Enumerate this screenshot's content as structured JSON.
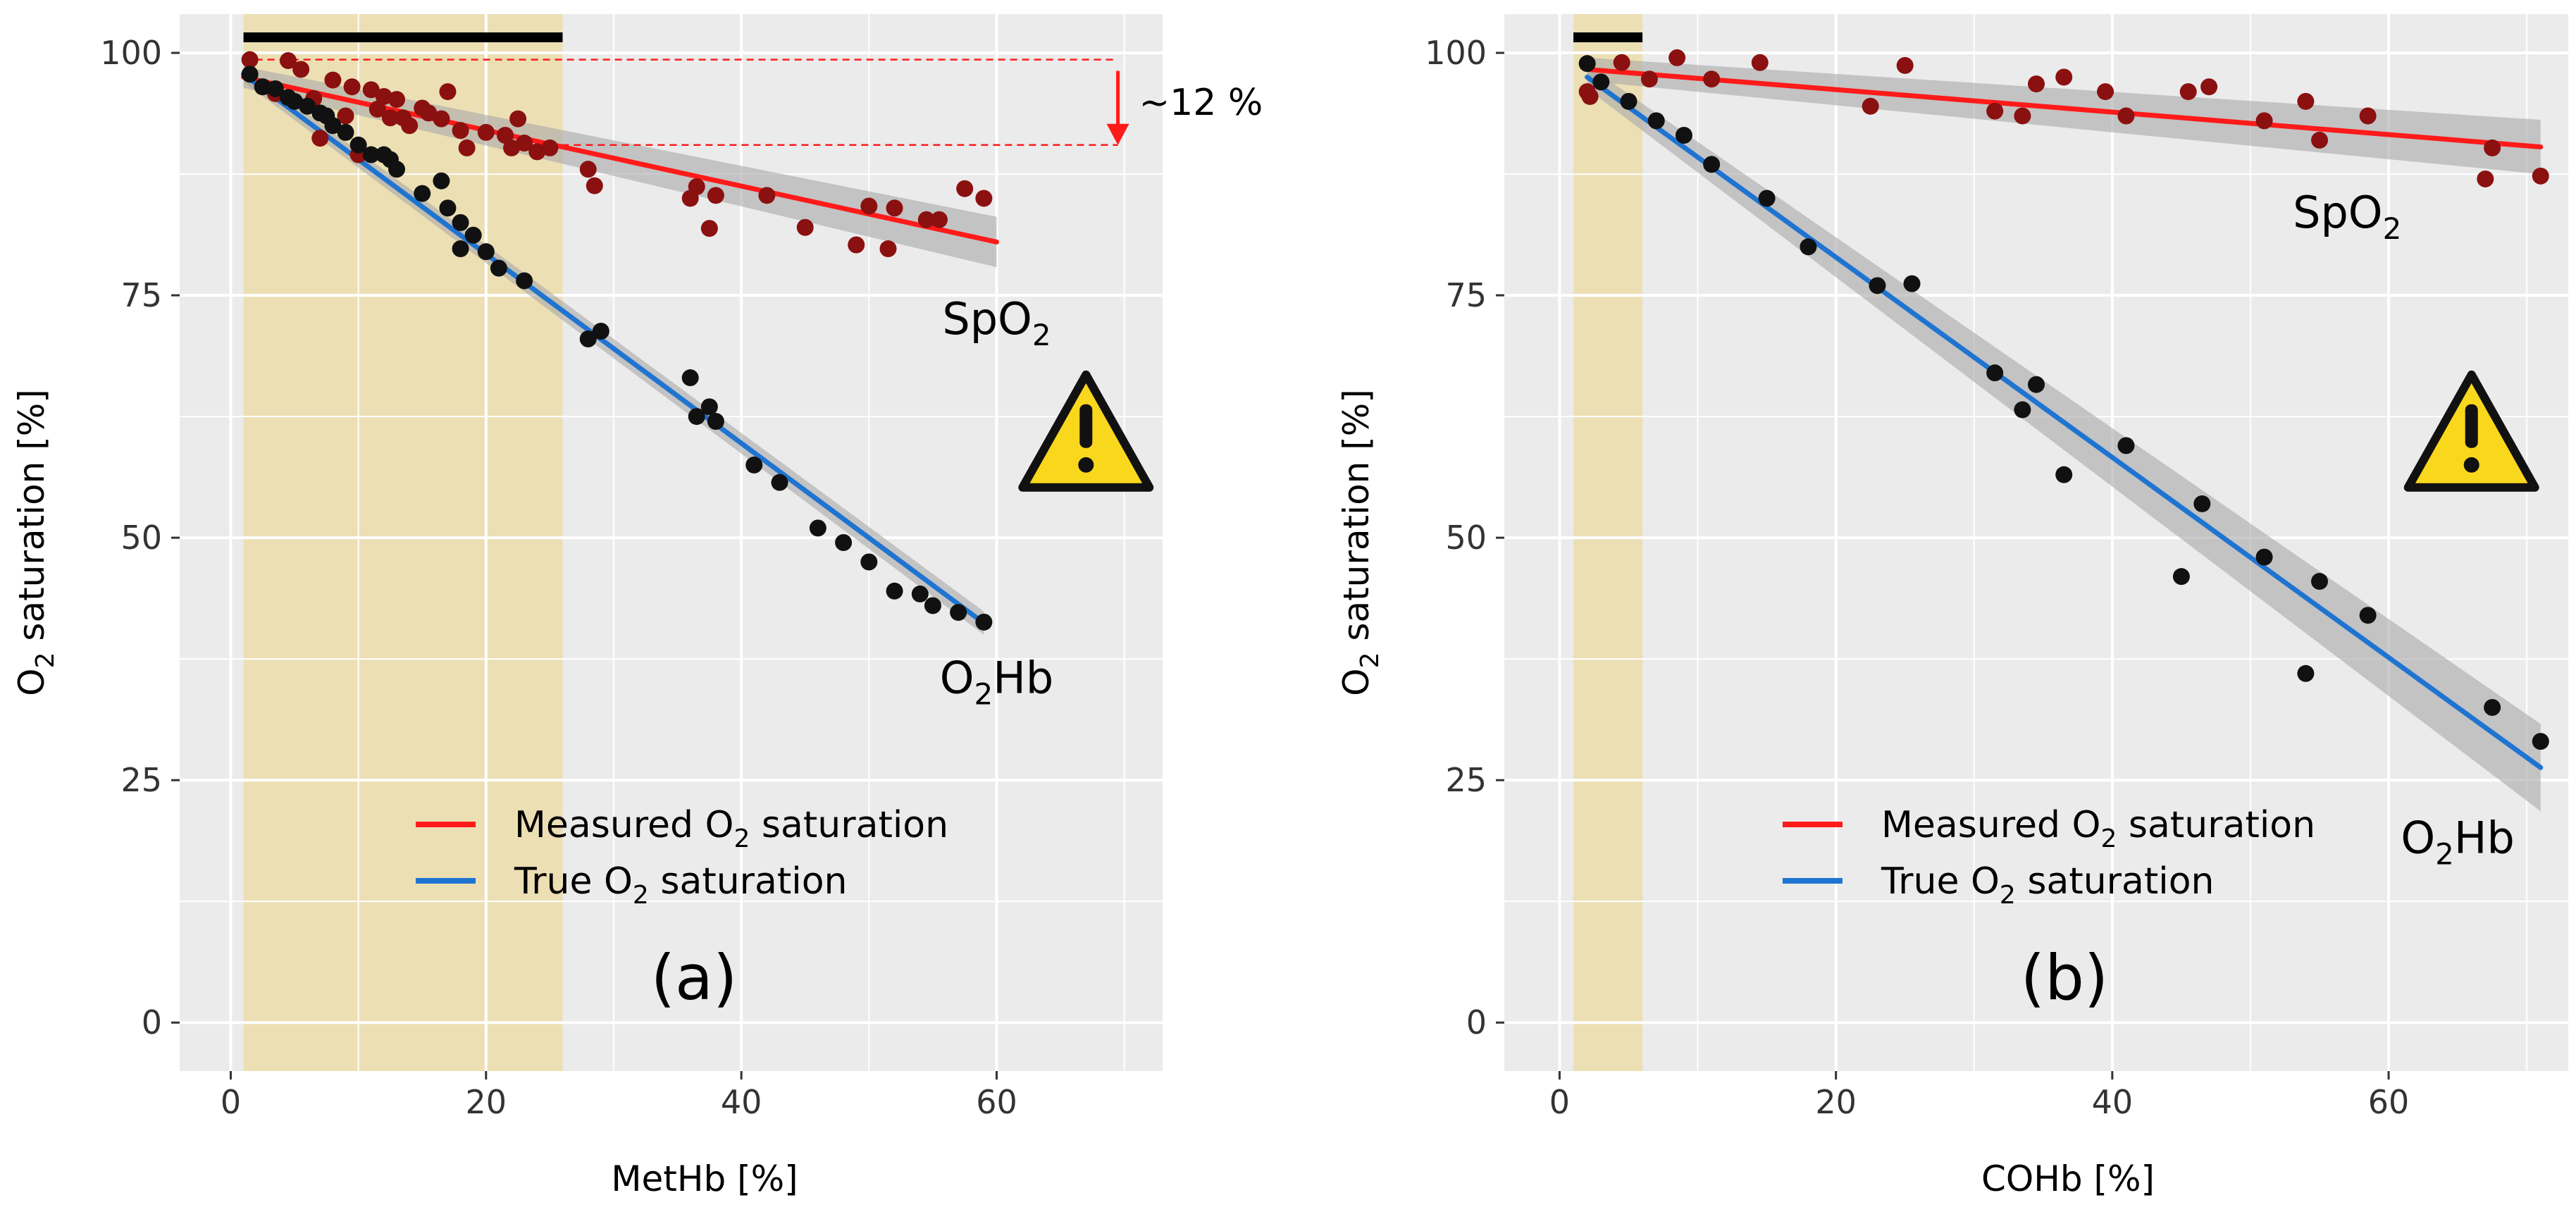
{
  "chart_data": [
    {
      "type": "scatter",
      "panel_label": "(a)",
      "xlabel": "MetHb [%]",
      "ylabel_prefix": "O",
      "ylabel_sub": "2",
      "ylabel_suffix": " saturation [%]",
      "xlim": [
        -4,
        73
      ],
      "ylim": [
        -5,
        104
      ],
      "xticks": [
        0,
        20,
        40,
        60
      ],
      "yticks": [
        0,
        25,
        50,
        75,
        100
      ],
      "grid": true,
      "shaded_region": {
        "x": [
          1,
          26
        ],
        "color": "#ecdfb4"
      },
      "top_bar": {
        "x": [
          1,
          26
        ],
        "color": "#000000"
      },
      "series": [
        {
          "name": "Measured O2 saturation",
          "label_prefix": "SpO",
          "label_sub": "2",
          "label_suffix": "",
          "label_at": [
            60,
            71
          ],
          "point_color": "#8b1010",
          "line_color": "#ff1a1a",
          "fit": [
            [
              1,
              97.5
            ],
            [
              60,
              80.5
            ]
          ],
          "ci_width": [
            1.1,
            2.6
          ],
          "points": [
            [
              1.5,
              99.3
            ],
            [
              2.5,
              96.5
            ],
            [
              3.5,
              95.8
            ],
            [
              4.5,
              99.2
            ],
            [
              5.5,
              98.3
            ],
            [
              6.5,
              95.3
            ],
            [
              7,
              91.2
            ],
            [
              8,
              97.2
            ],
            [
              9,
              93.5
            ],
            [
              9.5,
              96.5
            ],
            [
              10,
              89.5
            ],
            [
              11,
              96.2
            ],
            [
              11.5,
              94.2
            ],
            [
              12,
              95.5
            ],
            [
              12.5,
              93.3
            ],
            [
              13,
              95.2
            ],
            [
              13.5,
              93.3
            ],
            [
              14,
              92.5
            ],
            [
              15,
              94.3
            ],
            [
              15.5,
              93.8
            ],
            [
              16.5,
              93.2
            ],
            [
              17,
              96
            ],
            [
              18,
              92
            ],
            [
              18.5,
              90.2
            ],
            [
              20,
              91.8
            ],
            [
              21.5,
              91.5
            ],
            [
              22,
              90.2
            ],
            [
              22.5,
              93.2
            ],
            [
              23,
              90.7
            ],
            [
              24,
              89.8
            ],
            [
              25,
              90.2
            ],
            [
              28,
              88
            ],
            [
              28.5,
              86.3
            ],
            [
              36,
              85
            ],
            [
              36.5,
              86.2
            ],
            [
              37.5,
              81.9
            ],
            [
              38,
              85.3
            ],
            [
              42,
              85.3
            ],
            [
              45,
              82
            ],
            [
              49,
              80.2
            ],
            [
              50,
              84.2
            ],
            [
              51.5,
              79.8
            ],
            [
              52,
              84
            ],
            [
              54.5,
              82.8
            ],
            [
              55.5,
              82.8
            ],
            [
              57.5,
              86
            ],
            [
              59,
              85
            ]
          ]
        },
        {
          "name": "True O2 saturation",
          "label_prefix": "O",
          "label_sub": "2",
          "label_suffix": "Hb",
          "label_at": [
            60,
            34
          ],
          "point_color": "#111111",
          "line_color": "#1f74d1",
          "fit": [
            [
              1,
              97.8
            ],
            [
              59,
              41.2
            ]
          ],
          "ci_width": [
            0.8,
            1.2
          ],
          "points": [
            [
              1.5,
              97.8
            ],
            [
              2.5,
              96.5
            ],
            [
              3.5,
              96.3
            ],
            [
              4.5,
              95.4
            ],
            [
              5,
              95
            ],
            [
              6,
              94.5
            ],
            [
              7,
              93.8
            ],
            [
              7.5,
              93.5
            ],
            [
              8,
              92.5
            ],
            [
              9,
              91.8
            ],
            [
              10,
              90.5
            ],
            [
              11,
              89.5
            ],
            [
              12,
              89.5
            ],
            [
              12.5,
              89
            ],
            [
              13,
              88
            ],
            [
              15,
              85.5
            ],
            [
              16.5,
              86.8
            ],
            [
              17,
              84
            ],
            [
              18,
              82.5
            ],
            [
              18,
              79.8
            ],
            [
              19,
              81.2
            ],
            [
              20,
              79.5
            ],
            [
              21,
              77.8
            ],
            [
              23,
              76.5
            ],
            [
              28,
              70.5
            ],
            [
              29,
              71.3
            ],
            [
              36,
              66.5
            ],
            [
              36.5,
              62.5
            ],
            [
              37.5,
              63.5
            ],
            [
              38,
              62
            ],
            [
              41,
              57.5
            ],
            [
              43,
              55.7
            ],
            [
              46,
              51
            ],
            [
              48,
              49.5
            ],
            [
              50,
              47.5
            ],
            [
              52,
              44.5
            ],
            [
              54,
              44.2
            ],
            [
              55,
              43
            ],
            [
              57,
              42.3
            ],
            [
              59,
              41.3
            ]
          ]
        }
      ],
      "annotation": {
        "text": "~12 %",
        "x": 69.5,
        "y_top": 99.3,
        "y_bottom": 90.5,
        "guide_start_x": 1,
        "guide_y_bottom_start_x": 25,
        "color": "#ff1a1a"
      },
      "warning_at": [
        67,
        61
      ]
    },
    {
      "type": "scatter",
      "panel_label": "(b)",
      "xlabel": "COHb [%]",
      "ylabel_prefix": "O",
      "ylabel_sub": "2",
      "ylabel_suffix": " saturation [%]",
      "xlim": [
        -4,
        73
      ],
      "ylim": [
        -5,
        104
      ],
      "xticks": [
        0,
        20,
        40,
        60
      ],
      "yticks": [
        0,
        25,
        50,
        75,
        100
      ],
      "grid": true,
      "shaded_region": {
        "x": [
          1,
          6
        ],
        "color": "#ecdfb4"
      },
      "top_bar": {
        "x": [
          1,
          6
        ],
        "color": "#000000"
      },
      "series": [
        {
          "name": "Measured O2 saturation",
          "label_prefix": "SpO",
          "label_sub": "2",
          "label_suffix": "",
          "label_at": [
            57,
            82
          ],
          "point_color": "#8b1010",
          "line_color": "#ff1a1a",
          "fit": [
            [
              2,
              98.3
            ],
            [
              71,
              90.3
            ]
          ],
          "ci_width": [
            1.2,
            2.8
          ],
          "points": [
            [
              2,
              96
            ],
            [
              2.2,
              95.5
            ],
            [
              4.5,
              99
            ],
            [
              6.5,
              97.3
            ],
            [
              8.5,
              99.5
            ],
            [
              11,
              97.3
            ],
            [
              14.5,
              99
            ],
            [
              22.5,
              94.5
            ],
            [
              25,
              98.7
            ],
            [
              31.5,
              94
            ],
            [
              33.5,
              93.5
            ],
            [
              34.5,
              96.8
            ],
            [
              36.5,
              97.5
            ],
            [
              39.5,
              96
            ],
            [
              41,
              93.5
            ],
            [
              45.5,
              96
            ],
            [
              47,
              96.5
            ],
            [
              51,
              93
            ],
            [
              54,
              95
            ],
            [
              55,
              91
            ],
            [
              58.5,
              93.5
            ],
            [
              67,
              87
            ],
            [
              67.5,
              90.2
            ],
            [
              71,
              87.3
            ]
          ]
        },
        {
          "name": "True O2 saturation",
          "label_prefix": "O",
          "label_sub": "2",
          "label_suffix": "Hb",
          "label_at": [
            65,
            17.5
          ],
          "point_color": "#111111",
          "line_color": "#1f74d1",
          "fit": [
            [
              2,
              97.5
            ],
            [
              71,
              26.3
            ]
          ],
          "ci_width": [
            1.2,
            4.5
          ],
          "points": [
            [
              2,
              98.9
            ],
            [
              3,
              97
            ],
            [
              5,
              95
            ],
            [
              7,
              93
            ],
            [
              9,
              91.5
            ],
            [
              11,
              88.5
            ],
            [
              15,
              85
            ],
            [
              18,
              80
            ],
            [
              23,
              76
            ],
            [
              25.5,
              76.2
            ],
            [
              31.5,
              67
            ],
            [
              33.5,
              63.2
            ],
            [
              34.5,
              65.8
            ],
            [
              36.5,
              56.5
            ],
            [
              41,
              59.5
            ],
            [
              45,
              46
            ],
            [
              46.5,
              53.5
            ],
            [
              51,
              48
            ],
            [
              54,
              36
            ],
            [
              55,
              45.5
            ],
            [
              58.5,
              42
            ],
            [
              67.5,
              32.5
            ],
            [
              71,
              29
            ]
          ]
        }
      ],
      "warning_at": [
        66,
        61
      ]
    }
  ]
}
